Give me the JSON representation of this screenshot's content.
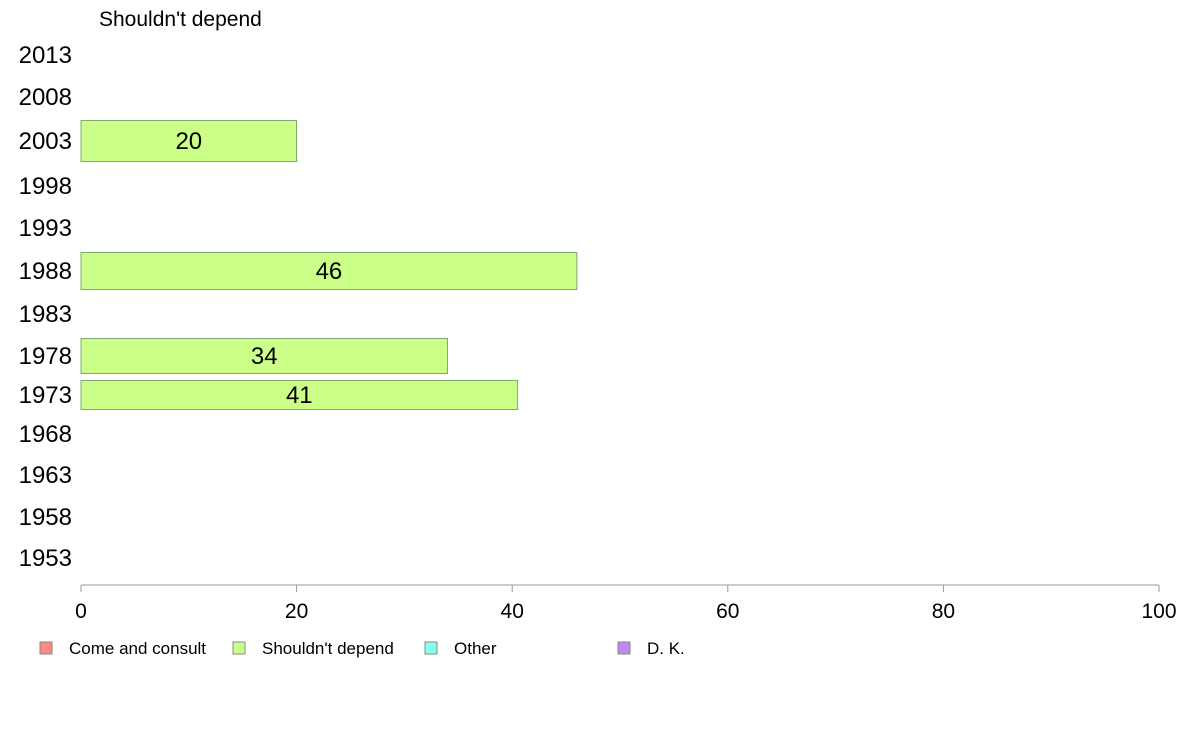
{
  "chart_data": {
    "type": "bar",
    "orientation": "horizontal",
    "title": "Shouldn't depend",
    "categories": [
      "2013",
      "2008",
      "2003",
      "1998",
      "1993",
      "1988",
      "1983",
      "1978",
      "1973",
      "1968",
      "1963",
      "1958",
      "1953"
    ],
    "series": [
      {
        "name": "Shouldn't depend",
        "color": "#ccff88",
        "values": [
          null,
          null,
          20,
          null,
          null,
          46,
          null,
          34,
          40.5,
          null,
          null,
          null,
          null
        ],
        "labels": [
          "",
          "",
          "20",
          "",
          "",
          "46",
          "",
          "34",
          "41",
          "",
          "",
          "",
          ""
        ]
      }
    ],
    "xlim": [
      0,
      100
    ],
    "xticks": [
      "0",
      "20",
      "40",
      "60",
      "80",
      "100"
    ],
    "legend": {
      "placement": "bottom",
      "items": [
        {
          "label": "Come and consult",
          "color": "#ff8888"
        },
        {
          "label": "Shouldn't depend",
          "color": "#ccff88"
        },
        {
          "label": "Other",
          "color": "#88ffee"
        },
        {
          "label": "D. K.",
          "color": "#bb88ee"
        }
      ]
    },
    "grid": false
  }
}
